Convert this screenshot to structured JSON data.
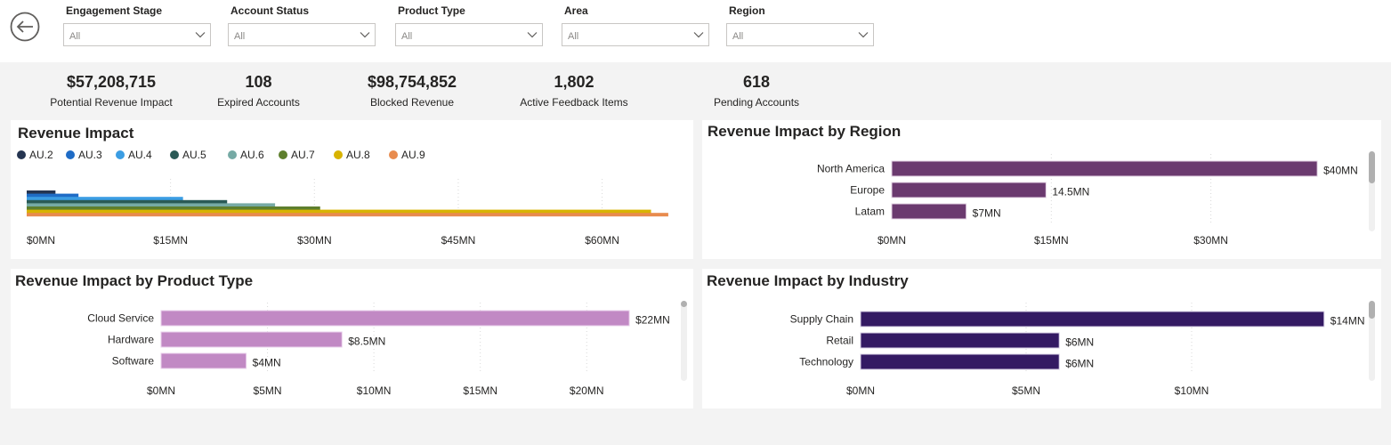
{
  "filters": [
    {
      "label": "Engagement Stage",
      "value": "All"
    },
    {
      "label": "Account Status",
      "value": "All"
    },
    {
      "label": "Product Type",
      "value": "All"
    },
    {
      "label": "Area",
      "value": "All"
    },
    {
      "label": "Region",
      "value": "All"
    }
  ],
  "kpis": [
    {
      "value": "$57,208,715",
      "label": "Potential Revenue Impact"
    },
    {
      "value": "108",
      "label": "Expired Accounts"
    },
    {
      "value": "$98,754,852",
      "label": "Blocked Revenue"
    },
    {
      "value": "1,802",
      "label": "Active Feedback Items"
    },
    {
      "value": "618",
      "label": "Pending Accounts"
    }
  ],
  "icons": {
    "back": "arrow-left-circle-icon",
    "dropdown": "chevron-down-icon"
  },
  "colors": {
    "background": "#f3f3f3",
    "card": "#ffffff",
    "region_bar": "#6b3a6f",
    "product_bar": "#c189c4",
    "industry_bar": "#341a63"
  },
  "chart_data": [
    {
      "title": "Revenue Impact",
      "type": "bar",
      "orientation": "horizontal",
      "layout": "overlapping",
      "legend_position": "top-left",
      "xlim": [
        0,
        67
      ],
      "xticks": [
        "$0MN",
        "$15MN",
        "$30MN",
        "$45MN",
        "$60MN"
      ],
      "series": [
        {
          "name": "AU.2",
          "color": "#253551",
          "value": 3
        },
        {
          "name": "AU.3",
          "color": "#1f6cc6",
          "value": 5.4
        },
        {
          "name": "AU.4",
          "color": "#3b9de3",
          "value": 16.3
        },
        {
          "name": "AU.5",
          "color": "#2a5a56",
          "value": 20.9
        },
        {
          "name": "AU.6",
          "color": "#76aaa5",
          "value": 25.9
        },
        {
          "name": "AU.7",
          "color": "#5e7f2d",
          "value": 30.6
        },
        {
          "name": "AU.8",
          "color": "#d8b300",
          "value": 65.1
        },
        {
          "name": "AU.9",
          "color": "#e88b4e",
          "value": 66.9
        }
      ]
    },
    {
      "title": "Revenue Impact by Region",
      "type": "bar",
      "orientation": "horizontal",
      "categories": [
        "North America",
        "Europe",
        "Latam"
      ],
      "values": [
        40,
        14.5,
        7
      ],
      "labels": [
        "$40MN",
        "14.5MN",
        "$7MN"
      ],
      "xlim": [
        0,
        43
      ],
      "xticks": [
        "$0MN",
        "$15MN",
        "$30MN"
      ]
    },
    {
      "title": "Revenue Impact by Product Type",
      "type": "bar",
      "orientation": "horizontal",
      "categories": [
        "Cloud Service",
        "Hardware",
        "Software"
      ],
      "values": [
        22,
        8.5,
        4
      ],
      "labels": [
        "$22MN",
        "$8.5MN",
        "$4MN"
      ],
      "xlim": [
        0,
        23
      ],
      "xticks": [
        "$0MN",
        "$5MN",
        "$10MN",
        "$15MN",
        "$20MN"
      ]
    },
    {
      "title": "Revenue Impact by Industry",
      "type": "bar",
      "orientation": "horizontal",
      "categories": [
        "Supply Chain",
        "Retail",
        "Technology"
      ],
      "values": [
        14,
        6,
        6
      ],
      "labels": [
        "$14MN",
        "$6MN",
        "$6MN"
      ],
      "xlim": [
        0,
        15
      ],
      "xticks": [
        "$0MN",
        "$5MN",
        "$10MN"
      ]
    }
  ]
}
